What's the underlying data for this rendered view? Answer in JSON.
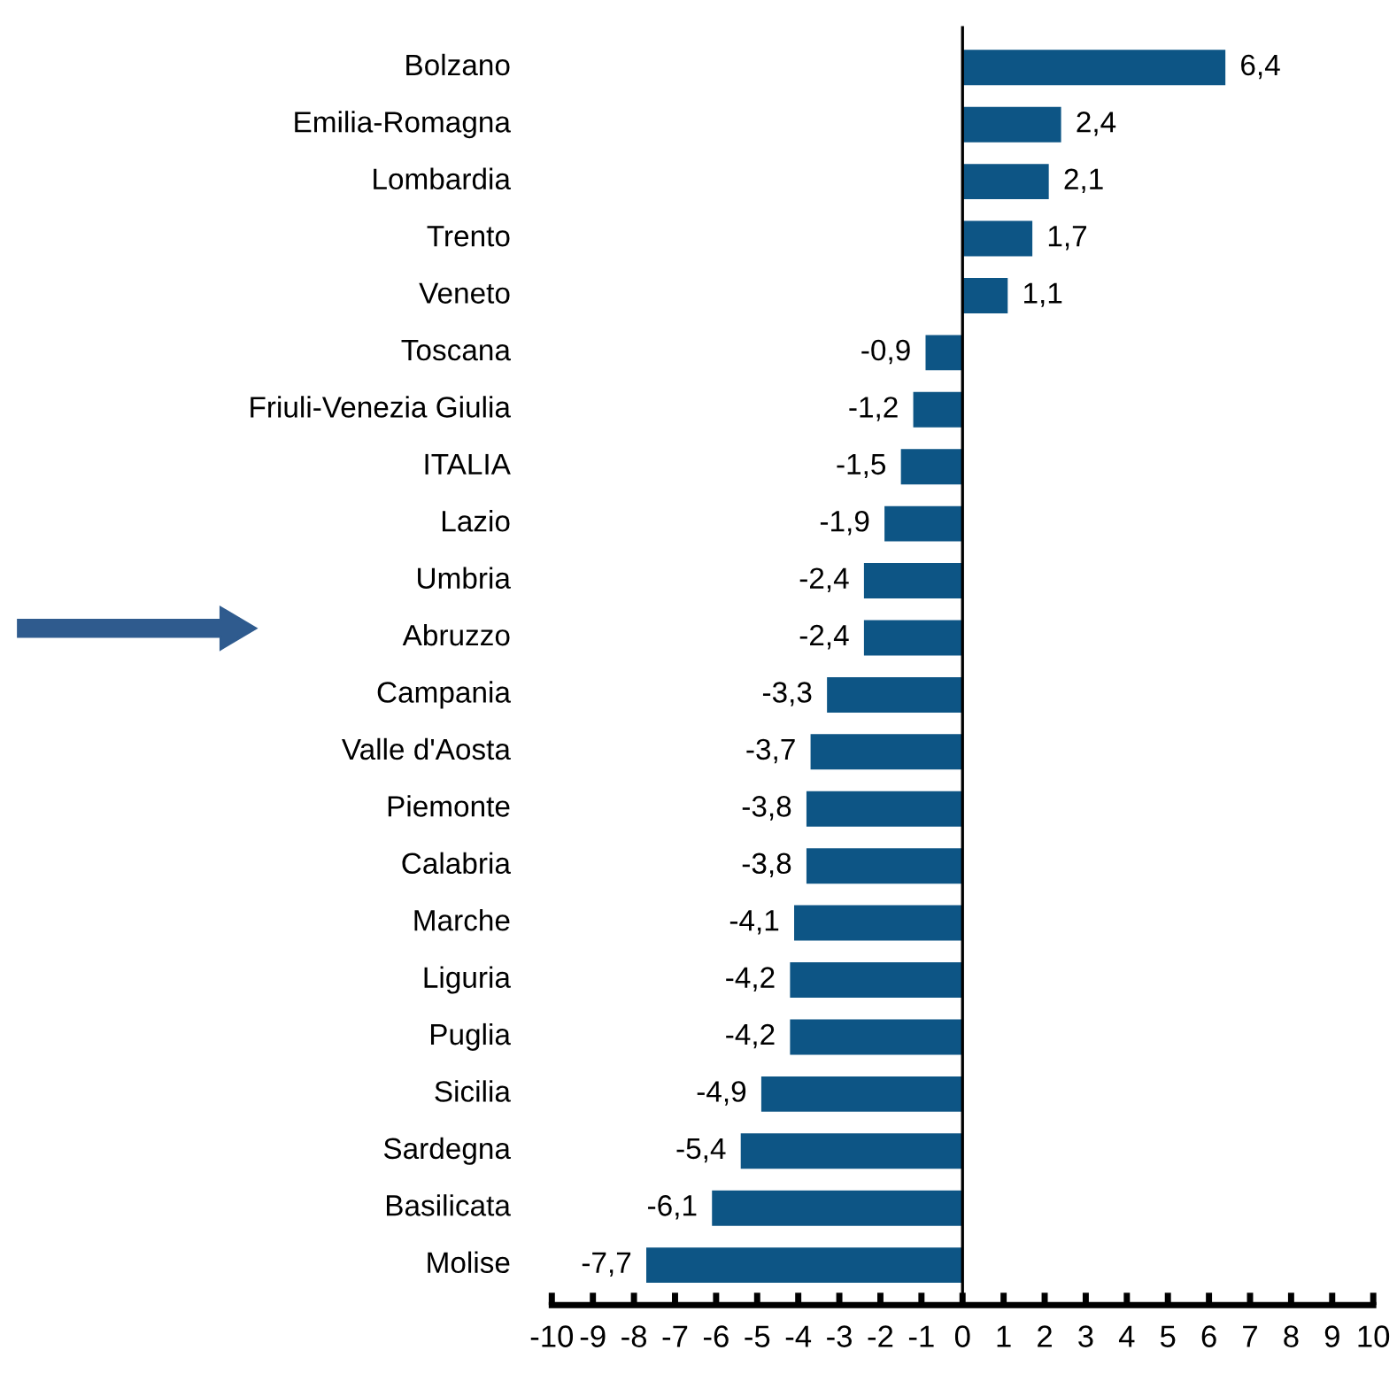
{
  "chart_data": {
    "type": "bar",
    "orientation": "horizontal",
    "categories": [
      "Bolzano",
      "Emilia-Romagna",
      "Lombardia",
      "Trento",
      "Veneto",
      "Toscana",
      "Friuli-Venezia Giulia",
      "ITALIA",
      "Lazio",
      "Umbria",
      "Abruzzo",
      "Campania",
      "Valle d'Aosta",
      "Piemonte",
      "Calabria",
      "Marche",
      "Liguria",
      "Puglia",
      "Sicilia",
      "Sardegna",
      "Basilicata",
      "Molise"
    ],
    "values": [
      6.4,
      2.4,
      2.1,
      1.7,
      1.1,
      -0.9,
      -1.2,
      -1.5,
      -1.9,
      -2.4,
      -2.4,
      -3.3,
      -3.7,
      -3.8,
      -3.8,
      -4.1,
      -4.2,
      -4.2,
      -4.9,
      -5.4,
      -6.1,
      -7.7
    ],
    "value_labels": [
      "6,4",
      "2,4",
      "2,1",
      "1,7",
      "1,1",
      "-0,9",
      "-1,2",
      "-1,5",
      "-1,9",
      "-2,4",
      "-2,4",
      "-3,3",
      "-3,7",
      "-3,8",
      "-3,8",
      "-4,1",
      "-4,2",
      "-4,2",
      "-4,9",
      "-5,4",
      "-6,1",
      "-7,7"
    ],
    "color": "#0d5585",
    "xlim": [
      -10,
      10
    ],
    "xticks": [
      -10,
      -9,
      -8,
      -7,
      -6,
      -5,
      -4,
      -3,
      -2,
      -1,
      0,
      1,
      2,
      3,
      4,
      5,
      6,
      7,
      8,
      9,
      10
    ],
    "legend": false
  }
}
